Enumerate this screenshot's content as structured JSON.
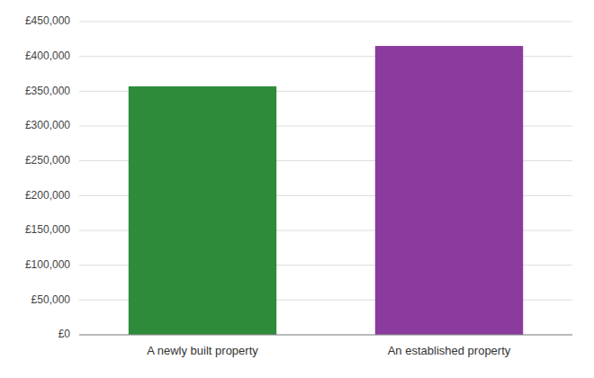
{
  "chart_data": {
    "type": "bar",
    "categories": [
      "A newly built property",
      "An established property"
    ],
    "values": [
      357000,
      415000
    ],
    "colors": [
      "#2e8b3a",
      "#8b3a9e"
    ],
    "ylim": [
      0,
      450000
    ],
    "yticks": [
      {
        "value": 0,
        "label": "£0"
      },
      {
        "value": 50000,
        "label": "£50,000"
      },
      {
        "value": 100000,
        "label": "£100,000"
      },
      {
        "value": 150000,
        "label": "£150,000"
      },
      {
        "value": 200000,
        "label": "£200,000"
      },
      {
        "value": 250000,
        "label": "£250,000"
      },
      {
        "value": 300000,
        "label": "£300,000"
      },
      {
        "value": 350000,
        "label": "£350,000"
      },
      {
        "value": 400000,
        "label": "£400,000"
      },
      {
        "value": 450000,
        "label": "£450,000"
      }
    ],
    "grid": true
  }
}
